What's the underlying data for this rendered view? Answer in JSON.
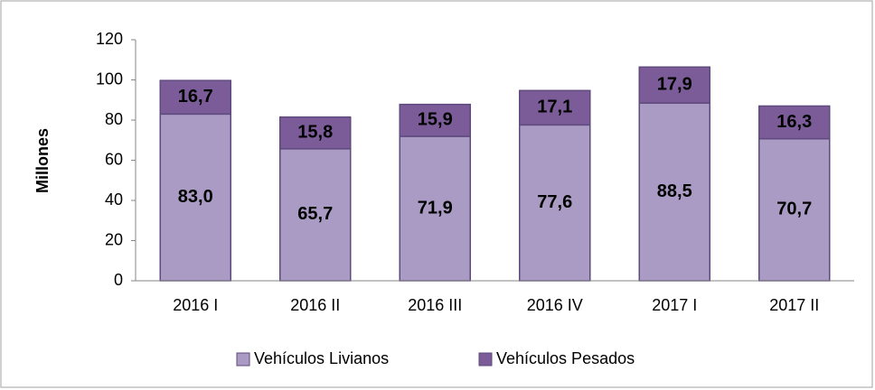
{
  "chart_data": {
    "type": "stacked_bar",
    "y_label": "Millones",
    "categories": [
      "2016 I",
      "2016 II",
      "2016 III",
      "2016 IV",
      "2017 I",
      "2017 II"
    ],
    "series": [
      {
        "name": "Vehículos Livianos",
        "color": "#a99bc3",
        "values": [
          83.0,
          65.7,
          71.9,
          77.6,
          88.5,
          70.7
        ],
        "value_labels": [
          "83,0",
          "65,7",
          "71,9",
          "77,6",
          "88,5",
          "70,7"
        ]
      },
      {
        "name": "Vehículos Pesados",
        "color": "#7b5c98",
        "values": [
          16.7,
          15.8,
          15.9,
          17.1,
          17.9,
          16.3
        ],
        "value_labels": [
          "16,7",
          "15,8",
          "15,9",
          "17,1",
          "17,9",
          "16,3"
        ]
      }
    ],
    "ylim": [
      0,
      120
    ],
    "yticks": [
      0,
      20,
      40,
      60,
      80,
      100,
      120
    ],
    "grid": false,
    "legend": "bottom"
  }
}
